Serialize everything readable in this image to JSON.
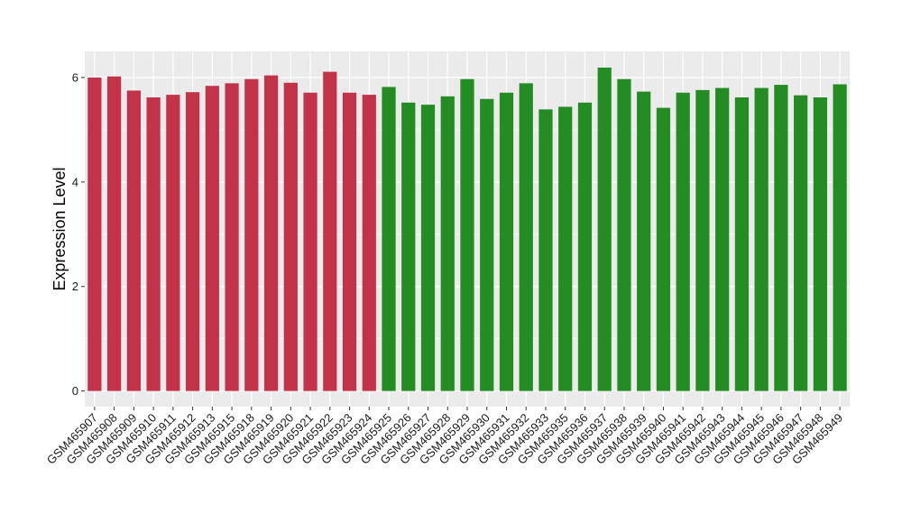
{
  "chart_data": {
    "type": "bar",
    "title": "",
    "xlabel": "",
    "ylabel": "Expression Level",
    "ylim": [
      -0.3,
      6.5
    ],
    "yticks": [
      0,
      2,
      4,
      6
    ],
    "grid": true,
    "legend": "none",
    "colors": {
      "group1": "#c2334a",
      "group2": "#238c23",
      "panel": "#ebebeb",
      "grid": "#ffffff"
    },
    "categories": [
      "GSM465907",
      "GSM465908",
      "GSM465909",
      "GSM465910",
      "GSM465911",
      "GSM465912",
      "GSM465913",
      "GSM465915",
      "GSM465918",
      "GSM465919",
      "GSM465920",
      "GSM465921",
      "GSM465922",
      "GSM465923",
      "GSM465924",
      "GSM465925",
      "GSM465926",
      "GSM465927",
      "GSM465928",
      "GSM465929",
      "GSM465930",
      "GSM465931",
      "GSM465932",
      "GSM465933",
      "GSM465935",
      "GSM465936",
      "GSM465937",
      "GSM465938",
      "GSM465939",
      "GSM465940",
      "GSM465941",
      "GSM465942",
      "GSM465943",
      "GSM465944",
      "GSM465945",
      "GSM465946",
      "GSM465947",
      "GSM465948",
      "GSM465949"
    ],
    "values": [
      6.0,
      6.02,
      5.75,
      5.62,
      5.67,
      5.72,
      5.84,
      5.89,
      5.97,
      6.04,
      5.9,
      5.71,
      6.11,
      5.71,
      5.67,
      5.82,
      5.52,
      5.48,
      5.64,
      5.97,
      5.59,
      5.71,
      5.89,
      5.39,
      5.44,
      5.52,
      6.19,
      5.97,
      5.73,
      5.42,
      5.71,
      5.76,
      5.8,
      5.62,
      5.8,
      5.86,
      5.66,
      5.62,
      5.87
    ],
    "groups": [
      1,
      1,
      1,
      1,
      1,
      1,
      1,
      1,
      1,
      1,
      1,
      1,
      1,
      1,
      1,
      2,
      2,
      2,
      2,
      2,
      2,
      2,
      2,
      2,
      2,
      2,
      2,
      2,
      2,
      2,
      2,
      2,
      2,
      2,
      2,
      2,
      2,
      2,
      2
    ]
  }
}
